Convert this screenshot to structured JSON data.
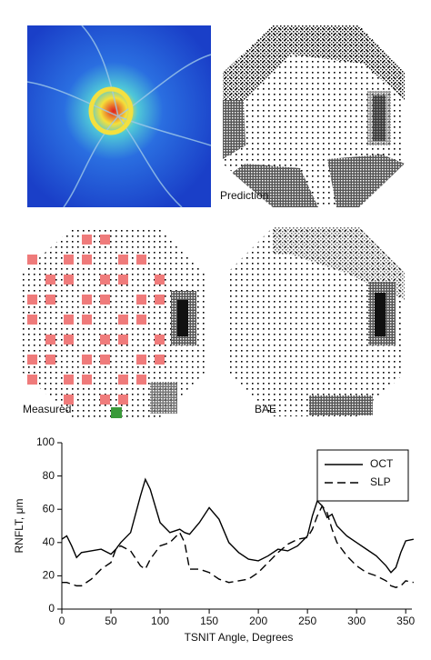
{
  "panel_labels": {
    "prediction": "Prediction",
    "measured": "Measured",
    "bae": "BAE"
  },
  "chart_data": {
    "type": "line",
    "x_label": "TSNIT Angle, Degrees",
    "y_label": "RNFLT, μm",
    "x": [
      0,
      5,
      10,
      15,
      20,
      30,
      40,
      50,
      55,
      60,
      70,
      80,
      85,
      90,
      100,
      110,
      120,
      125,
      130,
      140,
      150,
      160,
      170,
      180,
      190,
      200,
      210,
      220,
      230,
      240,
      250,
      255,
      260,
      265,
      270,
      275,
      280,
      290,
      300,
      310,
      320,
      330,
      335,
      340,
      345,
      350,
      358
    ],
    "series": [
      {
        "name": "OCT",
        "color": "#000000",
        "dash": "solid",
        "values": [
          42,
          44,
          38,
          31,
          34,
          35,
          36,
          33,
          36,
          40,
          46,
          68,
          78,
          72,
          52,
          46,
          48,
          46,
          45,
          52,
          61,
          54,
          40,
          34,
          30,
          29,
          32,
          36,
          35,
          38,
          44,
          56,
          65,
          62,
          55,
          57,
          50,
          44,
          40,
          36,
          32,
          26,
          22,
          25,
          34,
          41,
          42
        ]
      },
      {
        "name": "SLP",
        "color": "#000000",
        "dash": "dashed",
        "values": [
          16,
          16,
          15,
          14,
          14,
          18,
          24,
          28,
          36,
          38,
          35,
          26,
          24,
          30,
          38,
          40,
          46,
          40,
          24,
          24,
          22,
          18,
          16,
          17,
          18,
          22,
          28,
          34,
          39,
          42,
          43,
          48,
          56,
          62,
          58,
          48,
          40,
          32,
          26,
          22,
          20,
          17,
          14,
          13,
          14,
          17,
          16
        ]
      }
    ],
    "xlim": [
      0,
      360
    ],
    "xticks": [
      0,
      50,
      100,
      150,
      200,
      250,
      300,
      350
    ],
    "ylim": [
      0,
      100
    ],
    "yticks": [
      0,
      20,
      40,
      60,
      80,
      100
    ],
    "legend": "upper right"
  }
}
